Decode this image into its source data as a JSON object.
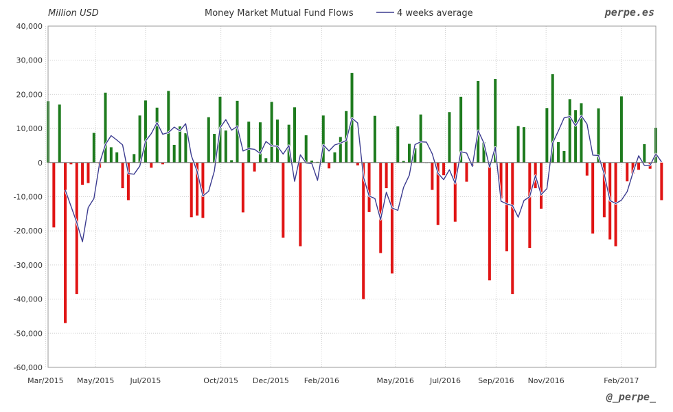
{
  "header": {
    "unit_label": "Million USD",
    "title": "Money Market Mutual Fund Flows",
    "brand_top": "perpe.es",
    "brand_bottom": "@_perpe_"
  },
  "colors": {
    "positive": "#1e7b1e",
    "negative": "#e01414",
    "average_line": "#3b3b8f",
    "grid": "#d0d0d0",
    "axis": "#999999"
  },
  "chart_data": {
    "type": "bar",
    "title": "Money Market Mutual Fund Flows",
    "ylabel": "Million USD",
    "ylim": [
      -60000,
      40000
    ],
    "yticks": [
      40000,
      30000,
      20000,
      10000,
      0,
      -10000,
      -20000,
      -30000,
      -40000,
      -50000,
      -60000
    ],
    "ytick_labels": [
      "40,000",
      "30,000",
      "20,000",
      "10,000",
      "0",
      "-10,000",
      "-20,000",
      "-30,000",
      "-40,000",
      "-50,000",
      "-60,000"
    ],
    "x_start": "2015-03-04",
    "x_end": "2017-03-15",
    "xticks": [
      {
        "date": "2015-03-01",
        "label": "Mar/2015"
      },
      {
        "date": "2015-05-01",
        "label": "May/2015"
      },
      {
        "date": "2015-07-01",
        "label": "Jul/2015"
      },
      {
        "date": "2015-10-01",
        "label": "Oct/2015"
      },
      {
        "date": "2015-12-01",
        "label": "Dec/2015"
      },
      {
        "date": "2016-02-01",
        "label": "Feb/2016"
      },
      {
        "date": "2016-05-01",
        "label": "May/2016"
      },
      {
        "date": "2016-07-01",
        "label": "Jul/2016"
      },
      {
        "date": "2016-09-01",
        "label": "Sep/2016"
      },
      {
        "date": "2016-11-01",
        "label": "Nov/2016"
      },
      {
        "date": "2017-02-01",
        "label": "Feb/2017"
      }
    ],
    "weekly_flows": [
      18000,
      -19000,
      17000,
      -47000,
      -500,
      -38500,
      -6500,
      -6000,
      8700,
      -1500,
      20500,
      4500,
      3000,
      -7500,
      -11000,
      2500,
      13800,
      18200,
      -1500,
      16100,
      -500,
      21000,
      5200,
      10600,
      8600,
      -16000,
      -15500,
      -16200,
      13300,
      8400,
      19300,
      9400,
      700,
      18100,
      -14600,
      12000,
      -2600,
      11800,
      1300,
      17800,
      12600,
      -22000,
      11100,
      16200,
      -24500,
      8000,
      600,
      200,
      13800,
      -1700,
      3000,
      7500,
      15100,
      26300,
      -800,
      -40000,
      -14500,
      13700,
      -26500,
      -7500,
      -32500,
      10600,
      500,
      5500,
      4200,
      14100,
      0,
      -8000,
      -18300,
      -3700,
      14800,
      -17300,
      19300,
      -5600,
      -1000,
      23900,
      6000,
      -34500,
      24500,
      -10500,
      -26000,
      -38500,
      10700,
      10400,
      -25000,
      -7500,
      -13500,
      16000,
      25900,
      6000,
      3400,
      18600,
      15400,
      17400,
      -3800,
      -20800,
      15900,
      -16000,
      -22500,
      -24500,
      19400,
      -5500,
      -3200,
      -2100,
      5400,
      -1800,
      10200,
      -11000
    ],
    "series": [
      {
        "name": "4 weeks average",
        "type": "line",
        "values": [
          null,
          null,
          null,
          -8000,
          -12800,
          -17500,
          -23200,
          -13200,
          -10500,
          -100,
          5300,
          7900,
          6600,
          5200,
          -3200,
          -3400,
          -1000,
          6300,
          8500,
          11700,
          8300,
          8800,
          10400,
          9300,
          11400,
          2000,
          -2600,
          -9800,
          -8400,
          -2500,
          10200,
          12600,
          9500,
          10600,
          3400,
          4100,
          3900,
          2700,
          6200,
          4900,
          4800,
          2500,
          5000,
          -5500,
          2300,
          -100,
          -300,
          -5200,
          5200,
          3400,
          5200,
          5700,
          6500,
          13000,
          11600,
          -4200,
          -9800,
          -10500,
          -16700,
          -8700,
          -13300,
          -14000,
          -7300,
          -3700,
          5300,
          6100,
          6000,
          2600,
          -3100,
          -5000,
          -2100,
          -6100,
          3200,
          2800,
          -1100,
          9400,
          5800,
          -1300,
          4500,
          -11300,
          -12100,
          -12600,
          -16000,
          -11100,
          -10000,
          -3800,
          -9400,
          -7600,
          5700,
          9300,
          13100,
          13500,
          10800,
          13700,
          11300,
          2200,
          2100,
          -3400,
          -11100,
          -12000,
          -11000,
          -8500,
          -3000,
          2000,
          -800,
          -800,
          2600,
          200
        ]
      }
    ],
    "legend": [
      {
        "name": "4 weeks average",
        "placement": "top-center"
      }
    ],
    "grid": true
  }
}
